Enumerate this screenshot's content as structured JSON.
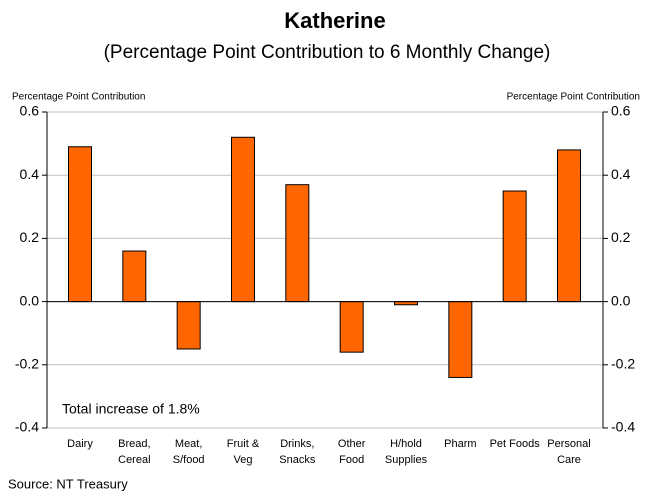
{
  "chart_data": {
    "type": "bar",
    "title": "Katherine",
    "subtitle": "(Percentage Point Contribution to 6 Monthly Change)",
    "y_label": "Percentage Point Contribution",
    "y2_label": "Percentage Point Contribution",
    "annotation": "Total increase of 1.8%",
    "source": "Source: NT Treasury",
    "categories": [
      [
        "Dairy"
      ],
      [
        "Bread,",
        "Cereal"
      ],
      [
        "Meat,",
        "S/food"
      ],
      [
        "Fruit &",
        "Veg"
      ],
      [
        "Drinks,",
        "Snacks"
      ],
      [
        "Other",
        "Food"
      ],
      [
        "H/hold",
        "Supplies"
      ],
      [
        "Pharm"
      ],
      [
        "Pet Foods"
      ],
      [
        "Personal",
        "Care"
      ]
    ],
    "values": [
      0.49,
      0.16,
      -0.15,
      0.52,
      0.37,
      -0.16,
      -0.01,
      -0.24,
      0.35,
      0.48
    ],
    "color": "#ff6600",
    "ylim": [
      -0.4,
      0.6
    ],
    "yticks": [
      -0.4,
      -0.2,
      {
        "value": 0,
        "label": "0.0"
      },
      0.2,
      0.4,
      0.6
    ],
    "y2lim": [
      -0.4,
      0.6
    ],
    "y2ticks": [
      -0.4,
      -0.2,
      {
        "value": 0,
        "label": "0.0"
      },
      0.2,
      0.4,
      0.6
    ],
    "grid": true
  }
}
